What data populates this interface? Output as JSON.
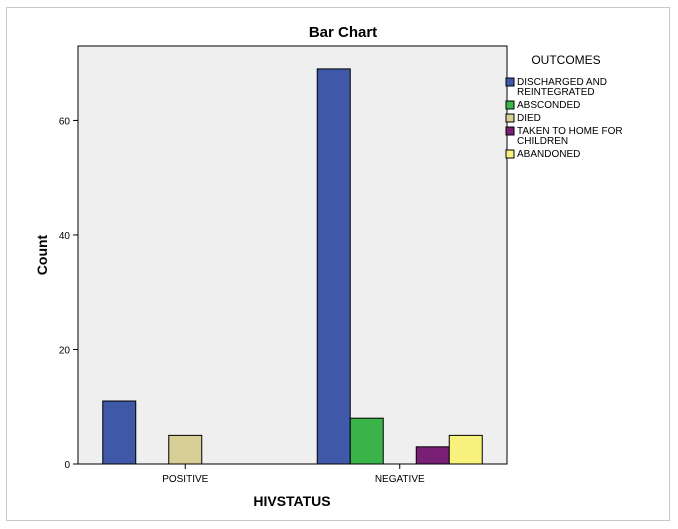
{
  "colors": {
    "plot_bg": "#efefef",
    "discharged": "#3f58a8",
    "absconded": "#3bb44a",
    "died": "#d8cf96",
    "taken": "#7a1f76",
    "abandoned": "#f8f17e"
  },
  "chart_data": {
    "type": "bar",
    "title": "Bar Chart",
    "xlabel": "HIVSTATUS",
    "ylabel": "Count",
    "categories": [
      "POSITIVE",
      "NEGATIVE"
    ],
    "ylim": [
      0,
      73
    ],
    "yticks": [
      0,
      20,
      40,
      60
    ],
    "ytick_labels": [
      "0",
      "20",
      "40",
      "60"
    ],
    "grid": false,
    "legend_title": "OUTCOMES",
    "legend_position": "right",
    "series": [
      {
        "name": "DISCHARGED AND REINTEGRATED",
        "name_lines": [
          "DISCHARGED AND",
          "REINTEGRATED"
        ],
        "color_key": "discharged",
        "values": [
          11,
          69
        ]
      },
      {
        "name": "ABSCONDED",
        "name_lines": [
          "ABSCONDED"
        ],
        "color_key": "absconded",
        "values": [
          0,
          8
        ]
      },
      {
        "name": "DIED",
        "name_lines": [
          "DIED"
        ],
        "color_key": "died",
        "values": [
          5,
          0
        ]
      },
      {
        "name": "TAKEN TO HOME FOR CHILDREN",
        "name_lines": [
          "TAKEN TO HOME FOR",
          "CHILDREN"
        ],
        "color_key": "taken",
        "values": [
          0,
          3
        ]
      },
      {
        "name": "ABANDONED",
        "name_lines": [
          "ABANDONED"
        ],
        "color_key": "abandoned",
        "values": [
          0,
          5
        ]
      }
    ]
  }
}
